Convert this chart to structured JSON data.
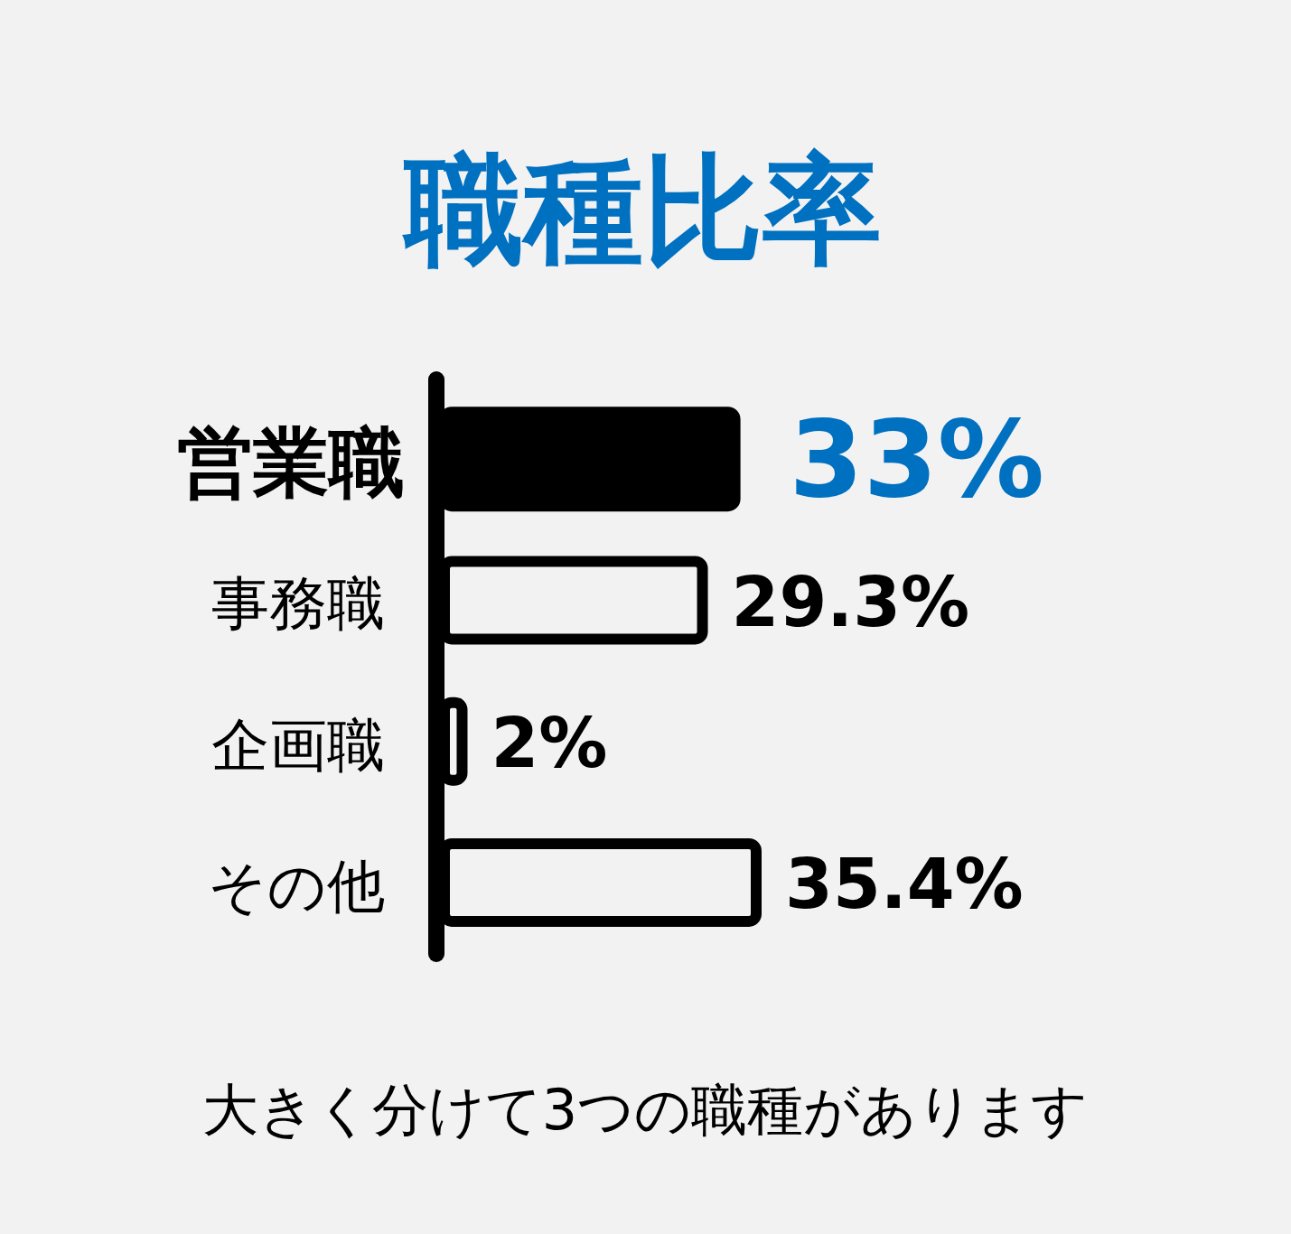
{
  "chart_data": {
    "type": "bar",
    "orientation": "horizontal",
    "title": "職種比率",
    "categories": [
      "営業職",
      "事務職",
      "企画職",
      "その他"
    ],
    "values": [
      33,
      29.3,
      2,
      35.4
    ],
    "colors": [
      "#000000",
      "#f2f2f2",
      "#f2f2f2",
      "#f2f2f2"
    ],
    "value_labels": [
      "33%",
      "29.3%",
      "2%",
      "35.4%"
    ],
    "annotations": [
      "大きく分けて3つの職種があります"
    ]
  }
}
